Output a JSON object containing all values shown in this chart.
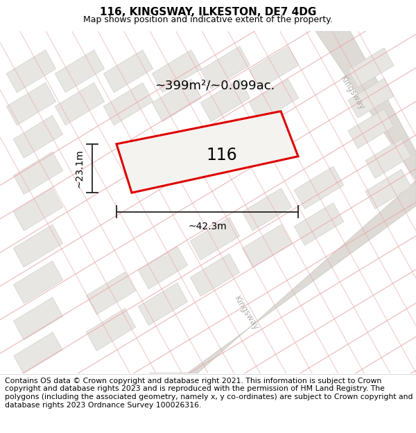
{
  "title": "116, KINGSWAY, ILKESTON, DE7 4DG",
  "subtitle": "Map shows position and indicative extent of the property.",
  "footer": "Contains OS data © Crown copyright and database right 2021. This information is subject to Crown copyright and database rights 2023 and is reproduced with the permission of HM Land Registry. The polygons (including the associated geometry, namely x, y co-ordinates) are subject to Crown copyright and database rights 2023 Ordnance Survey 100026316.",
  "area_label": "~399m²/~0.099ac.",
  "width_label": "~42.3m",
  "height_label": "~23.1m",
  "number_label": "116",
  "map_bg": "#f9f8f6",
  "bld_fc": "#e8e6e3",
  "bld_ec": "#d0ceca",
  "road_band_fc": "#e2dfdb",
  "road_band_ec": "#cac7c3",
  "plot_line_color": "#dd0000",
  "plot_fill_color": "#f5f3f0",
  "dim_line_color": "#222222",
  "road_line_color": "#e8aaaa",
  "road_label_color": "#b0aeab",
  "kingsway_band_fc": "#dedad6",
  "kingsway_band_ec": "#c8c5c0",
  "title_fontsize": 11,
  "subtitle_fontsize": 9,
  "footer_fontsize": 7.8,
  "annotation_fontsize": 13,
  "number_fontsize": 17,
  "dim_fontsize": 10
}
